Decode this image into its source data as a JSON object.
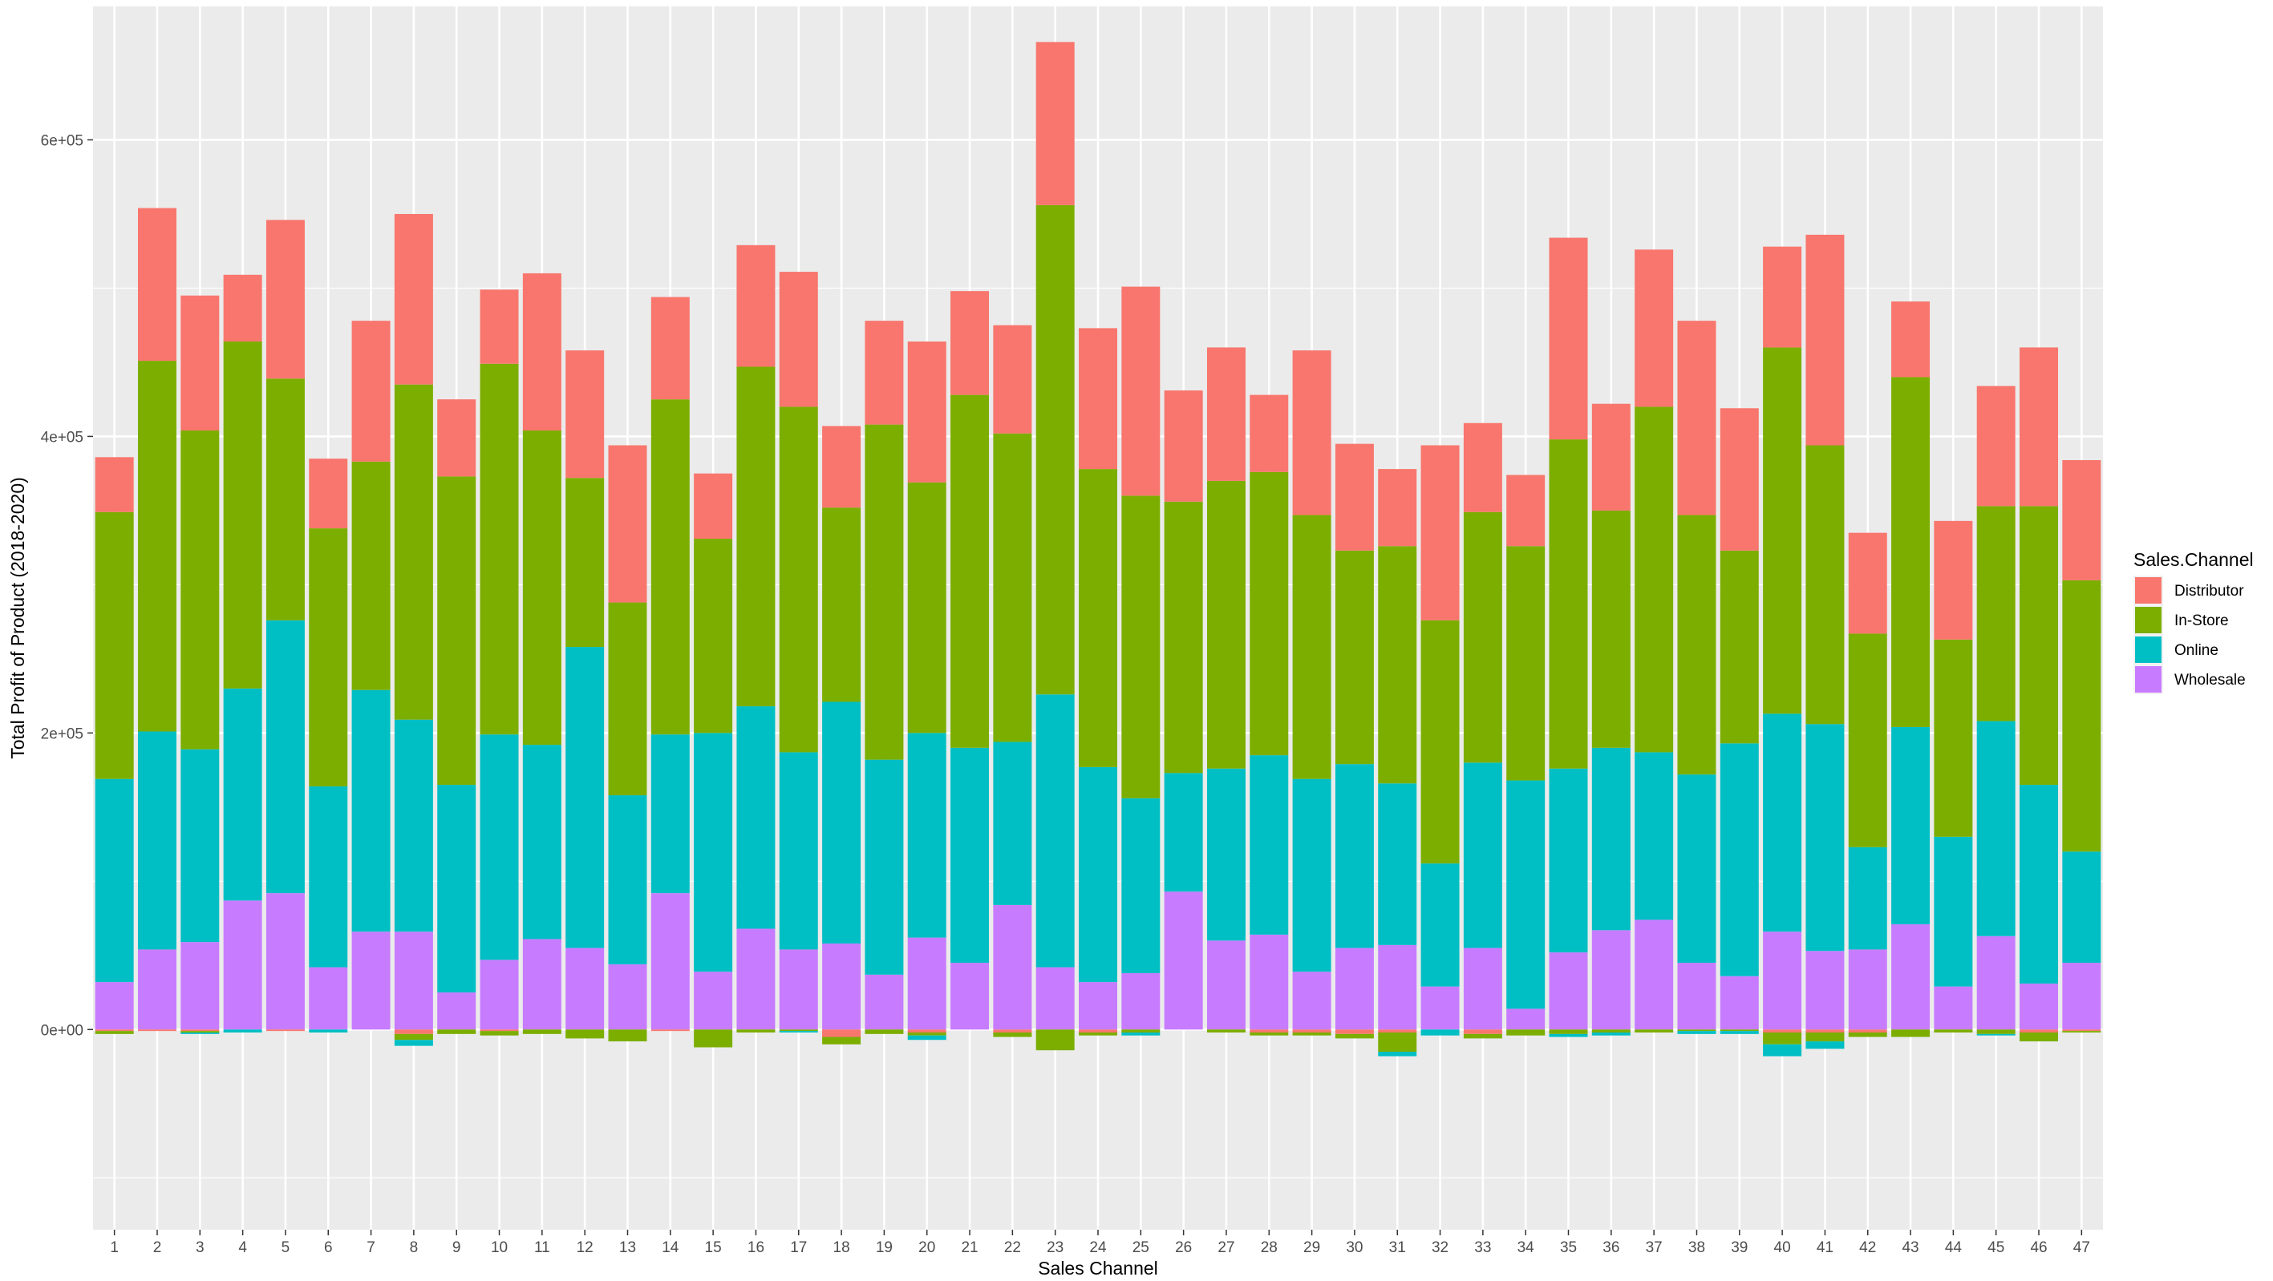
{
  "chart_data": {
    "type": "bar",
    "stacked": true,
    "xlabel": "Sales Channel",
    "ylabel": "Total Profit of Product (2018-2020)",
    "ylim": [
      -135000,
      690000
    ],
    "yticks": [
      0,
      200000,
      400000,
      600000
    ],
    "ytick_labels": [
      "0e+00",
      "2e+05",
      "4e+05",
      "6e+05"
    ],
    "categories": [
      "1",
      "2",
      "3",
      "4",
      "5",
      "6",
      "7",
      "8",
      "9",
      "10",
      "11",
      "12",
      "13",
      "14",
      "15",
      "16",
      "17",
      "18",
      "19",
      "20",
      "21",
      "22",
      "23",
      "24",
      "25",
      "26",
      "27",
      "28",
      "29",
      "30",
      "31",
      "32",
      "33",
      "34",
      "35",
      "36",
      "37",
      "38",
      "39",
      "40",
      "41",
      "42",
      "43",
      "44",
      "45",
      "46",
      "47"
    ],
    "grid": true,
    "legend": {
      "title": "Sales.Channel",
      "placement": "right"
    },
    "series": [
      {
        "name": "Wholesale",
        "color": "#C77CFF",
        "values": [
          32000,
          54000,
          59000,
          87000,
          92000,
          42000,
          66000,
          66000,
          25000,
          47000,
          61000,
          55000,
          44000,
          92000,
          39000,
          68000,
          54000,
          58000,
          37000,
          62000,
          45000,
          84000,
          42000,
          32000,
          38000,
          93000,
          60000,
          64000,
          39000,
          55000,
          57000,
          29000,
          55000,
          14000,
          52000,
          67000,
          74000,
          45000,
          36000,
          66000,
          53000,
          54000,
          71000,
          29000,
          63000,
          31000,
          45000
        ]
      },
      {
        "name": "Online",
        "color": "#00BFC4",
        "values": [
          137000,
          147000,
          130000,
          143000,
          184000,
          122000,
          163000,
          143000,
          140000,
          152000,
          131000,
          203000,
          114000,
          107000,
          161000,
          150000,
          133000,
          163000,
          145000,
          138000,
          145000,
          110000,
          184000,
          145000,
          118000,
          80000,
          116000,
          121000,
          130000,
          124000,
          109000,
          83000,
          125000,
          154000,
          124000,
          123000,
          113000,
          127000,
          157000,
          147000,
          153000,
          69000,
          133000,
          101000,
          145000,
          134000,
          75000
        ]
      },
      {
        "name": "In-Store",
        "color": "#7CAE00",
        "values": [
          180000,
          250000,
          215000,
          234000,
          163000,
          174000,
          154000,
          226000,
          208000,
          250000,
          212000,
          114000,
          130000,
          226000,
          131000,
          229000,
          233000,
          131000,
          226000,
          169000,
          238000,
          208000,
          330000,
          201000,
          204000,
          183000,
          194000,
          191000,
          178000,
          144000,
          160000,
          164000,
          169000,
          158000,
          222000,
          160000,
          233000,
          175000,
          130000,
          247000,
          188000,
          144000,
          236000,
          133000,
          145000,
          188000,
          183000
        ]
      },
      {
        "name": "Distributor",
        "color": "#F8766D",
        "values": [
          37000,
          103000,
          91000,
          45000,
          107000,
          47000,
          95000,
          115000,
          52000,
          50000,
          106000,
          86000,
          106000,
          69000,
          44000,
          82000,
          91000,
          55000,
          70000,
          95000,
          70000,
          73000,
          110000,
          95000,
          141000,
          75000,
          90000,
          52000,
          111000,
          72000,
          52000,
          118000,
          60000,
          48000,
          136000,
          72000,
          106000,
          131000,
          96000,
          68000,
          142000,
          68000,
          51000,
          80000,
          81000,
          107000,
          81000
        ]
      }
    ],
    "negative_series": [
      {
        "name": "Distributor",
        "values": [
          -1000,
          -1000,
          -1000,
          0,
          -1000,
          0,
          0,
          -3000,
          0,
          -1000,
          0,
          0,
          0,
          -1000,
          0,
          0,
          0,
          -5000,
          0,
          -2000,
          0,
          -2000,
          0,
          -2000,
          0,
          0,
          0,
          -2000,
          -2000,
          -3000,
          -2000,
          0,
          -3000,
          0,
          0,
          0,
          0,
          0,
          0,
          -2000,
          -2000,
          -2000,
          0,
          0,
          0,
          -2000,
          -1000
        ]
      },
      {
        "name": "In-Store",
        "values": [
          -2000,
          0,
          -1000,
          0,
          0,
          0,
          0,
          -4000,
          -3000,
          -3000,
          -3000,
          -6000,
          -8000,
          0,
          -12000,
          -2000,
          -1000,
          -5000,
          -3000,
          -2000,
          0,
          -3000,
          -14000,
          -2000,
          -2000,
          0,
          -2000,
          -2000,
          -2000,
          -3000,
          -13000,
          0,
          -3000,
          -4000,
          -3000,
          -2000,
          -2000,
          -1000,
          -1000,
          -8000,
          -6000,
          -3000,
          -5000,
          -2000,
          -3000,
          -6000,
          -1000
        ]
      },
      {
        "name": "Online",
        "values": [
          0,
          0,
          -1000,
          -2000,
          0,
          -2000,
          0,
          -4000,
          0,
          0,
          0,
          0,
          0,
          0,
          0,
          0,
          -1000,
          0,
          0,
          -3000,
          0,
          0,
          0,
          0,
          -2000,
          0,
          0,
          0,
          0,
          0,
          -3000,
          -4000,
          0,
          0,
          -2000,
          -2000,
          0,
          -2000,
          -2000,
          -8000,
          -5000,
          0,
          0,
          0,
          -1000,
          0,
          0
        ]
      }
    ]
  }
}
